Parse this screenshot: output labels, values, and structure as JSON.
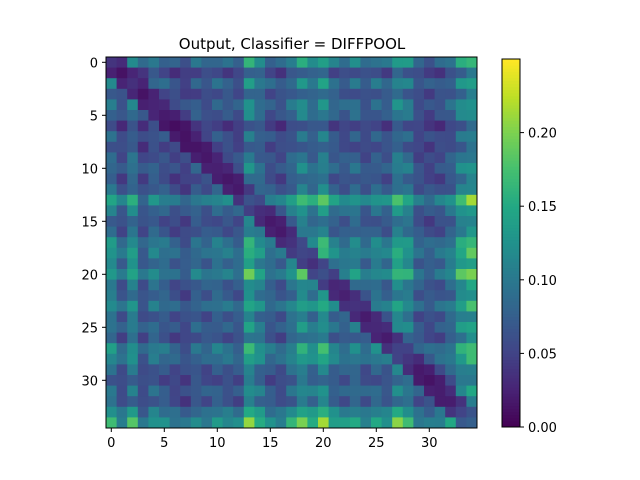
{
  "chart_data": {
    "type": "heatmap",
    "title": "Output, Classifier = DIFFPOOL",
    "xlabel": "",
    "ylabel": "",
    "n_rows": 35,
    "n_cols": 35,
    "x_ticks": [
      0,
      5,
      10,
      15,
      20,
      25,
      30
    ],
    "y_ticks": [
      0,
      5,
      10,
      15,
      20,
      25,
      30
    ],
    "y_direction": "top-to-bottom",
    "colormap": "viridis",
    "colorbar": {
      "vmin": 0.0,
      "vmax": 0.25,
      "ticks": [
        0.0,
        0.05,
        0.1,
        0.15,
        0.2
      ],
      "tick_labels": [
        "0.00",
        "0.05",
        "0.10",
        "0.15",
        "0.20"
      ]
    },
    "row_strength": [
      0.12,
      0.03,
      0.09,
      0.04,
      0.08,
      0.06,
      0.02,
      0.05,
      0.03,
      0.05,
      0.07,
      0.04,
      0.06,
      0.2,
      0.09,
      0.05,
      0.06,
      0.13,
      0.15,
      0.1,
      0.18,
      0.08,
      0.07,
      0.13,
      0.06,
      0.09,
      0.05,
      0.14,
      0.12,
      0.06,
      0.04,
      0.08,
      0.05,
      0.14,
      0.24
    ],
    "col_strength": [
      0.12,
      0.05,
      0.13,
      0.04,
      0.08,
      0.06,
      0.04,
      0.03,
      0.06,
      0.05,
      0.07,
      0.06,
      0.05,
      0.2,
      0.12,
      0.06,
      0.05,
      0.1,
      0.18,
      0.12,
      0.2,
      0.09,
      0.07,
      0.1,
      0.06,
      0.09,
      0.07,
      0.17,
      0.13,
      0.05,
      0.04,
      0.05,
      0.08,
      0.18,
      0.24
    ],
    "note_values": "cell values approximated as row_strength[i]*col_strength[j]/0.24 blended with diagonal structure"
  }
}
